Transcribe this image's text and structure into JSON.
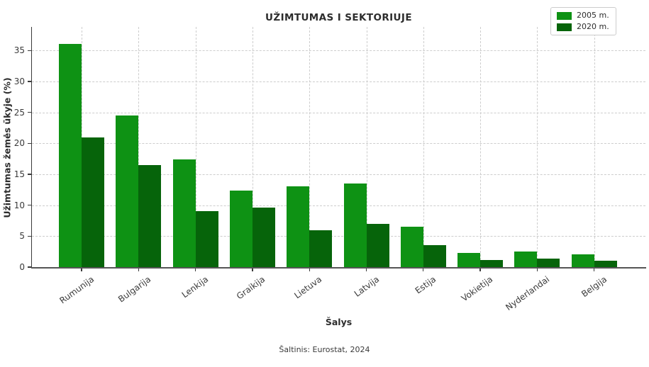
{
  "chart_data": {
    "type": "bar",
    "title": "UŽIMTUMAS I SEKTORIUJE",
    "xlabel": "Šalys",
    "ylabel": "Užimtumas žemės ūkyje (%)",
    "source_note": "Šaltinis: Eurostat, 2024",
    "categories": [
      "Rumunija",
      "Bulgarija",
      "Lenkija",
      "Graikija",
      "Lietuva",
      "Latvija",
      "Estija",
      "Vokietija",
      "Nyderlandai",
      "Belgija"
    ],
    "series": [
      {
        "name": "2005 m.",
        "color": "#0E9214",
        "values": [
          36.0,
          24.5,
          17.4,
          12.4,
          13.0,
          13.5,
          6.5,
          2.3,
          2.5,
          2.1
        ]
      },
      {
        "name": "2020 m.",
        "color": "#06640A",
        "values": [
          21.0,
          16.5,
          9.0,
          9.6,
          6.0,
          7.0,
          3.5,
          1.2,
          1.4,
          1.0
        ]
      }
    ],
    "yticks": [
      0,
      5,
      10,
      15,
      20,
      25,
      30,
      35
    ],
    "ylim": [
      0,
      38.8
    ],
    "grid": "both-dashed",
    "gridline_color": "#cdcdcd",
    "legend_position": "top-right"
  }
}
